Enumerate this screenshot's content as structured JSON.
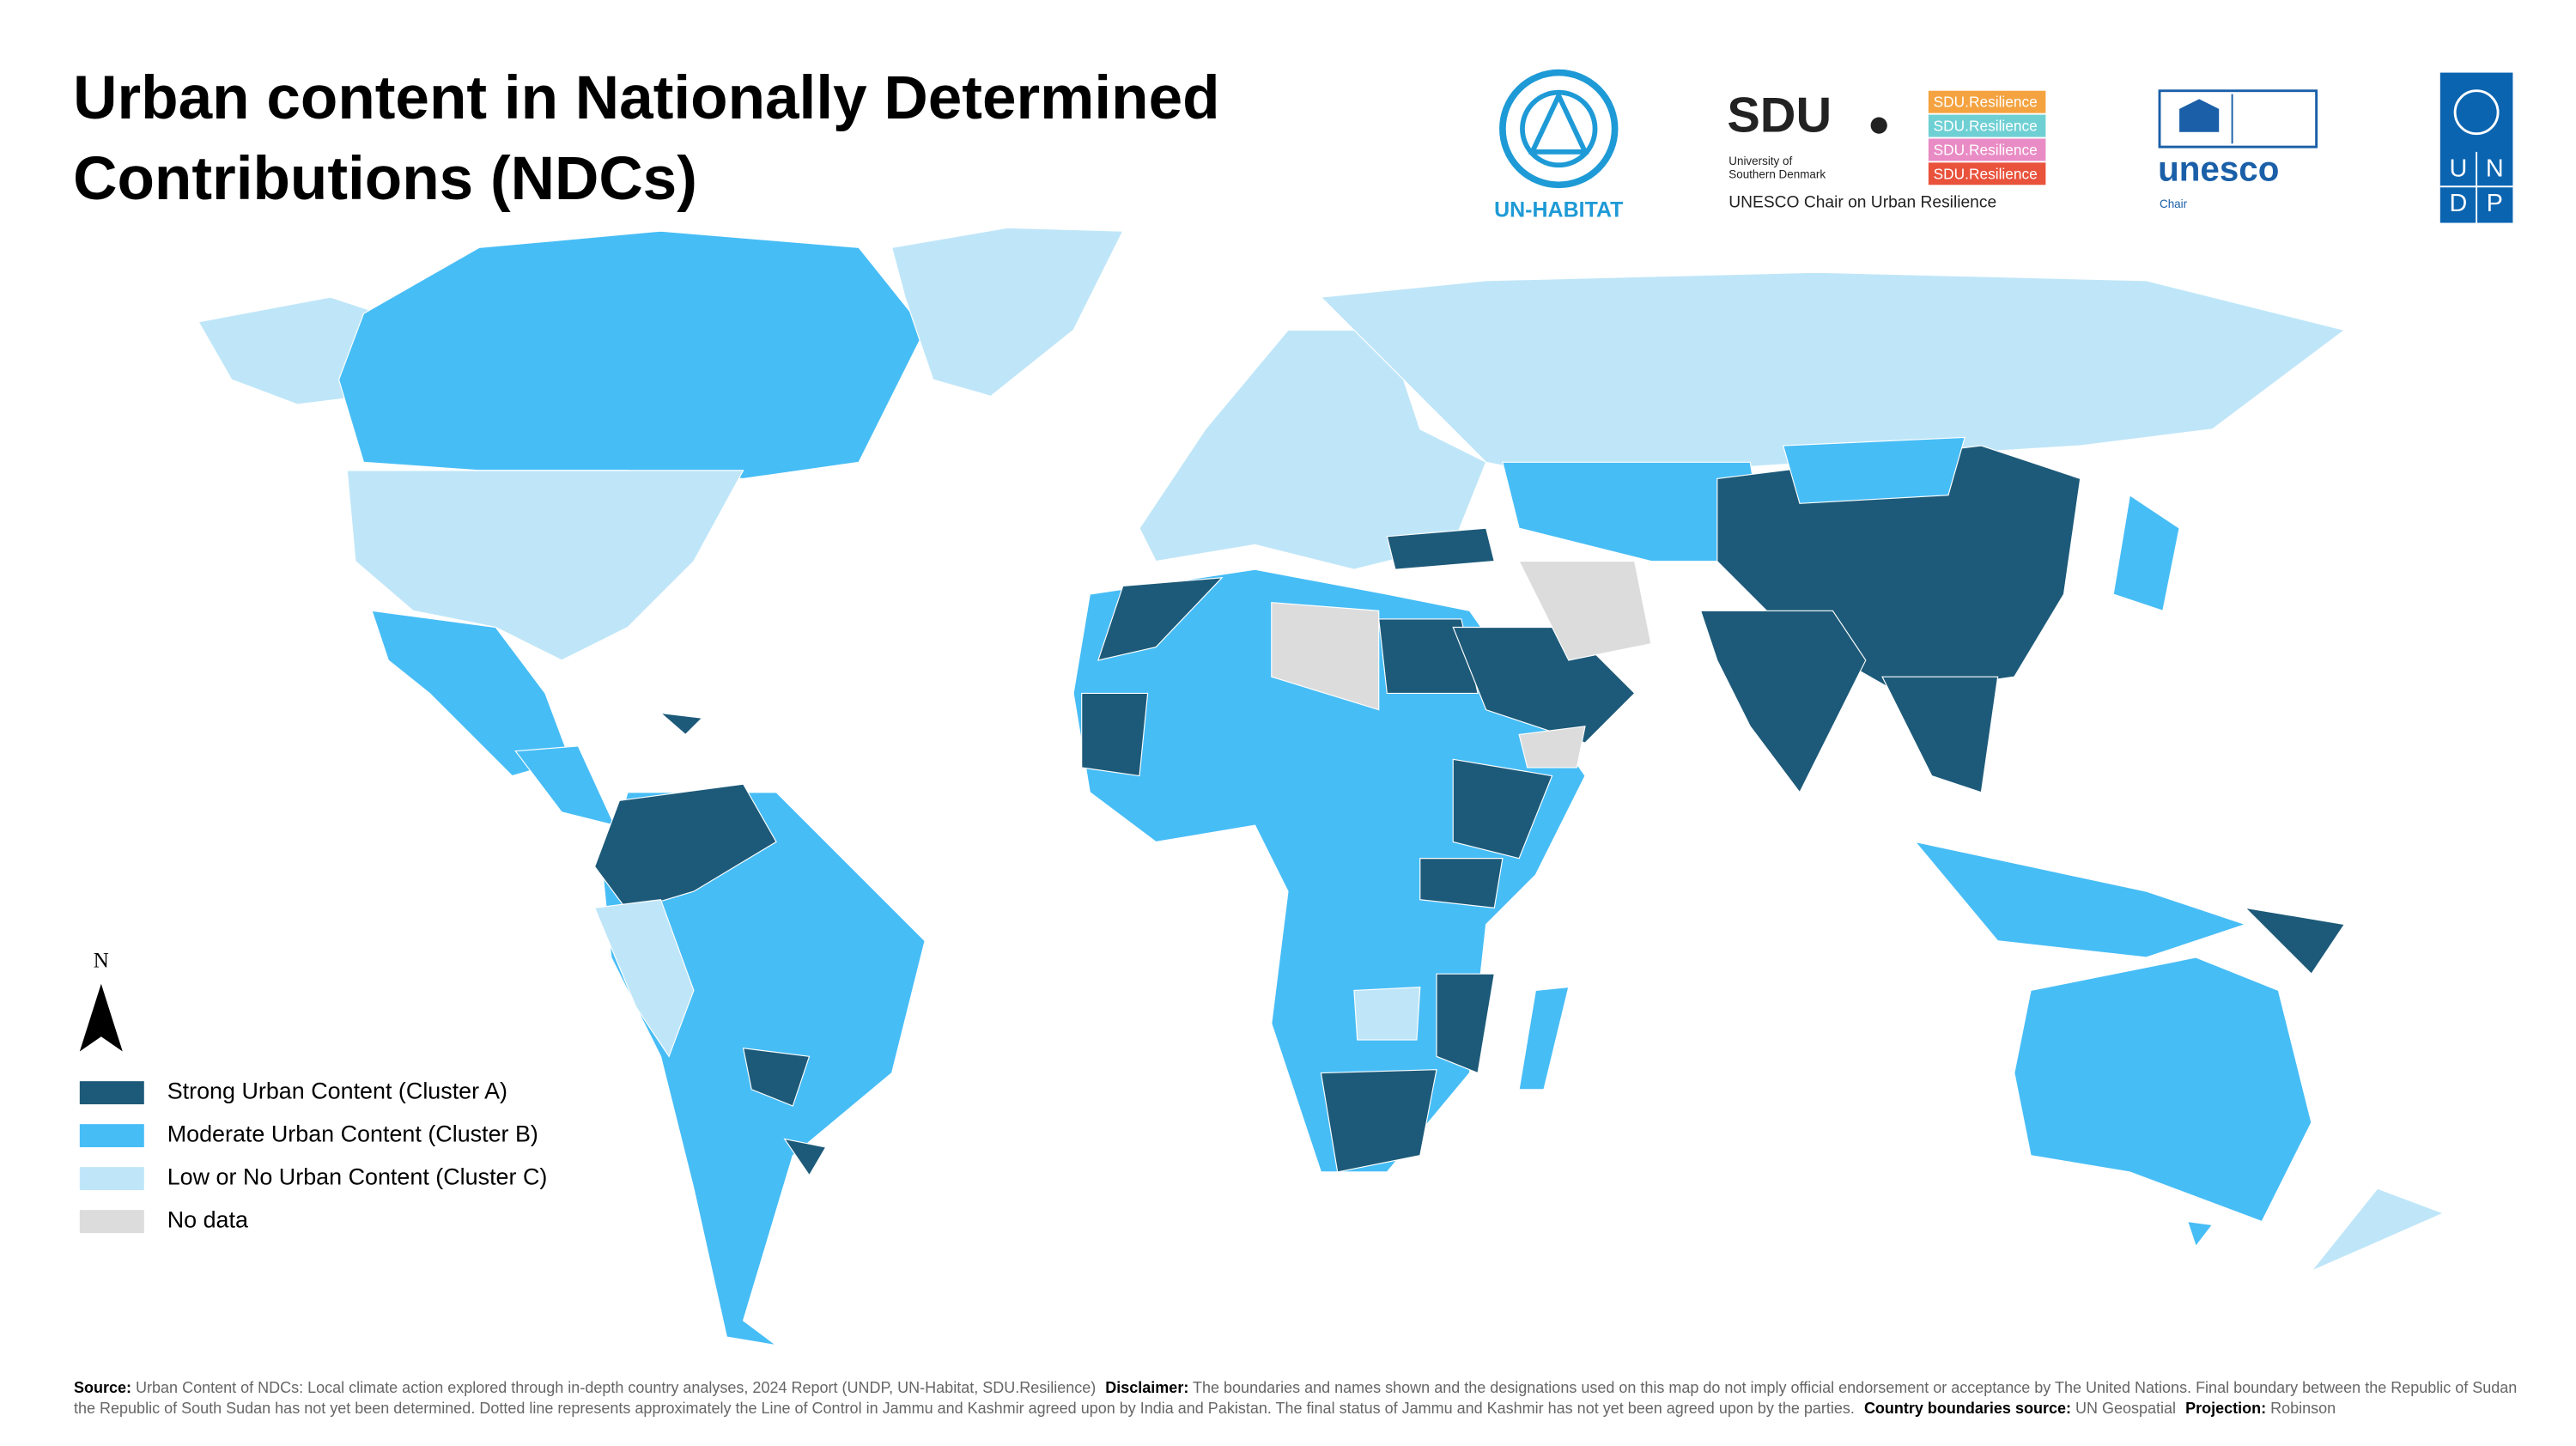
{
  "title_lines": [
    "Urban content in Nationally Determined",
    "Contributions (NDCs)"
  ],
  "logos": {
    "un_habitat": "UN-HABITAT",
    "sdu": "SDU",
    "sdu_university": [
      "University of",
      "Southern Denmark"
    ],
    "sdu_chair": "UNESCO Chair on Urban Resilience",
    "sdu_tags": [
      {
        "label": "SDU.Resilience",
        "color": "#f4a340"
      },
      {
        "label": "SDU.Resilience",
        "color": "#6fd0d4"
      },
      {
        "label": "SDU.Resilience",
        "color": "#e98bc4"
      },
      {
        "label": "SDU.Resilience",
        "color": "#e9523b"
      }
    ],
    "unesco": "unesco",
    "unesco_sub": "Chair",
    "undp": [
      "U",
      "N",
      "D",
      "P"
    ]
  },
  "north": "N",
  "legend": [
    {
      "label": "Strong Urban Content (Cluster A)",
      "color": "#1d5a79"
    },
    {
      "label": "Moderate Urban Content (Cluster B)",
      "color": "#47bdf6"
    },
    {
      "label": "Low or No Urban Content (Cluster C)",
      "color": "#bfe6f8"
    },
    {
      "label": "No data",
      "color": "#dcdcdc"
    }
  ],
  "footer": {
    "source_label": "Source:",
    "source": "Urban Content of NDCs: Local climate action explored through in-depth country analyses, 2024 Report (UNDP, UN-Habitat, SDU.Resilience)",
    "disclaimer_label": "Disclaimer:",
    "disclaimer": "The boundaries and names shown and the designations used on this map do not imply official endorsement or acceptance by The United Nations.  Final boundary between the Republic of Sudan the Republic of South Sudan has not yet been determined. Dotted line represents approximately the Line of Control in Jammu and Kashmir agreed upon by India and Pakistan. The final status of Jammu and Kashmir has not yet been agreed upon by the parties.",
    "boundaries_label": "Country boundaries source:",
    "boundaries": "UN Geospatial",
    "projection_label": "Projection:",
    "projection": "Robinson"
  }
}
